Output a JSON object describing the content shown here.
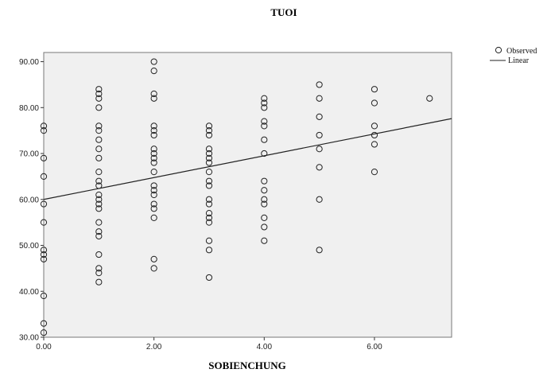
{
  "chart_data": {
    "type": "scatter",
    "title": "TUOI",
    "xlabel": "SOBIENCHUNG",
    "ylabel": "",
    "xlim": [
      0,
      7.4
    ],
    "ylim": [
      30,
      92
    ],
    "x_ticks": [
      "0.00",
      "2.00",
      "4.00",
      "6.00"
    ],
    "x_tick_values": [
      0,
      2,
      4,
      6
    ],
    "y_ticks": [
      "30.00",
      "40.00",
      "50.00",
      "60.00",
      "70.00",
      "80.00",
      "90.00"
    ],
    "y_tick_values": [
      30,
      40,
      50,
      60,
      70,
      80,
      90
    ],
    "legend": {
      "placement": "top-right",
      "observed_label": "Observed",
      "linear_label": "Linear"
    },
    "colors": {
      "plot_bg": "#f0f0f0",
      "marker": "#222222",
      "line": "#222222"
    },
    "series": [
      {
        "name": "Observed",
        "points": [
          [
            0,
            76
          ],
          [
            0,
            75
          ],
          [
            0,
            69
          ],
          [
            0,
            65
          ],
          [
            0,
            59
          ],
          [
            0,
            55
          ],
          [
            0,
            49
          ],
          [
            0,
            48
          ],
          [
            0,
            47
          ],
          [
            0,
            39
          ],
          [
            0,
            33
          ],
          [
            0,
            31
          ],
          [
            1,
            84
          ],
          [
            1,
            83
          ],
          [
            1,
            82
          ],
          [
            1,
            80
          ],
          [
            1,
            76
          ],
          [
            1,
            75
          ],
          [
            1,
            73
          ],
          [
            1,
            71
          ],
          [
            1,
            69
          ],
          [
            1,
            66
          ],
          [
            1,
            64
          ],
          [
            1,
            63
          ],
          [
            1,
            61
          ],
          [
            1,
            60
          ],
          [
            1,
            59
          ],
          [
            1,
            58
          ],
          [
            1,
            55
          ],
          [
            1,
            53
          ],
          [
            1,
            52
          ],
          [
            1,
            48
          ],
          [
            1,
            45
          ],
          [
            1,
            44
          ],
          [
            1,
            42
          ],
          [
            2,
            90
          ],
          [
            2,
            88
          ],
          [
            2,
            83
          ],
          [
            2,
            82
          ],
          [
            2,
            76
          ],
          [
            2,
            75
          ],
          [
            2,
            74
          ],
          [
            2,
            71
          ],
          [
            2,
            70
          ],
          [
            2,
            69
          ],
          [
            2,
            68
          ],
          [
            2,
            66
          ],
          [
            2,
            63
          ],
          [
            2,
            62
          ],
          [
            2,
            61
          ],
          [
            2,
            59
          ],
          [
            2,
            58
          ],
          [
            2,
            56
          ],
          [
            2,
            47
          ],
          [
            2,
            45
          ],
          [
            3,
            76
          ],
          [
            3,
            75
          ],
          [
            3,
            74
          ],
          [
            3,
            71
          ],
          [
            3,
            70
          ],
          [
            3,
            69
          ],
          [
            3,
            68
          ],
          [
            3,
            66
          ],
          [
            3,
            64
          ],
          [
            3,
            63
          ],
          [
            3,
            60
          ],
          [
            3,
            59
          ],
          [
            3,
            57
          ],
          [
            3,
            56
          ],
          [
            3,
            55
          ],
          [
            3,
            51
          ],
          [
            3,
            49
          ],
          [
            3,
            43
          ],
          [
            4,
            82
          ],
          [
            4,
            81
          ],
          [
            4,
            80
          ],
          [
            4,
            77
          ],
          [
            4,
            76
          ],
          [
            4,
            73
          ],
          [
            4,
            70
          ],
          [
            4,
            64
          ],
          [
            4,
            62
          ],
          [
            4,
            60
          ],
          [
            4,
            59
          ],
          [
            4,
            56
          ],
          [
            4,
            54
          ],
          [
            4,
            51
          ],
          [
            5,
            85
          ],
          [
            5,
            82
          ],
          [
            5,
            78
          ],
          [
            5,
            74
          ],
          [
            5,
            71
          ],
          [
            5,
            67
          ],
          [
            5,
            60
          ],
          [
            5,
            49
          ],
          [
            6,
            84
          ],
          [
            6,
            81
          ],
          [
            6,
            76
          ],
          [
            6,
            74
          ],
          [
            6,
            72
          ],
          [
            6,
            66
          ],
          [
            7,
            82
          ]
        ]
      },
      {
        "name": "Linear",
        "line": {
          "x": [
            0,
            7.4
          ],
          "y": [
            60,
            77.6
          ]
        }
      }
    ]
  }
}
